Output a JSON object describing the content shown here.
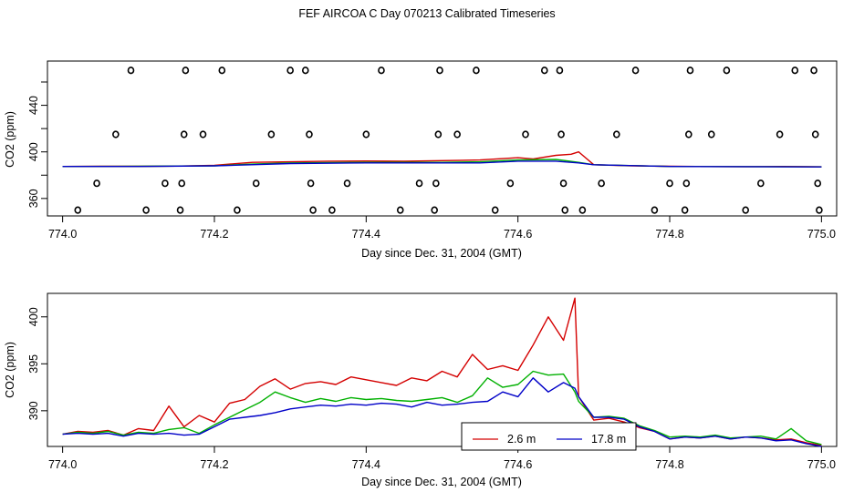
{
  "title": "FEF AIRCOA C  Day 070213  Calibrated Timeseries",
  "chart_data": [
    {
      "type": "scatter",
      "xlabel": "Day since Dec. 31, 2004 (GMT)",
      "ylabel": "CO2 (ppm)",
      "xlim": [
        773.98,
        775.02
      ],
      "ylim": [
        345,
        478
      ],
      "x_ticks": [
        "774.0",
        "774.2",
        "774.4",
        "774.6",
        "774.8",
        "775.0"
      ],
      "y_ticks": [
        "360",
        "400",
        "440"
      ],
      "y_minor_ticks": [
        380,
        420,
        460
      ],
      "series": [
        {
          "color": "#d40000",
          "x": [
            774.0,
            774.05,
            774.1,
            774.15,
            774.2,
            774.25,
            774.3,
            774.35,
            774.4,
            774.45,
            774.5,
            774.55,
            774.6,
            774.62,
            774.65,
            774.67,
            774.68,
            774.7,
            774.75,
            774.8,
            774.85,
            774.9,
            774.95,
            775.0
          ],
          "y": [
            387.5,
            387.6,
            387.6,
            387.8,
            388.5,
            391,
            391.5,
            392,
            392.2,
            392,
            392.5,
            393,
            395,
            394,
            397,
            398,
            400,
            389,
            388,
            387.6,
            387.4,
            387.3,
            387.5,
            387.2
          ]
        },
        {
          "color": "#00b000",
          "x": [
            774.0,
            774.1,
            774.2,
            774.25,
            774.3,
            774.4,
            774.5,
            774.55,
            774.6,
            774.65,
            774.68,
            774.7,
            774.8,
            774.9,
            775.0
          ],
          "y": [
            387.5,
            387.6,
            388,
            389.5,
            390.5,
            391,
            391,
            391.5,
            393,
            393.5,
            391,
            389,
            387.5,
            387.3,
            387.2
          ]
        },
        {
          "color": "#0000c8",
          "x": [
            774.0,
            774.1,
            774.2,
            774.3,
            774.4,
            774.5,
            774.55,
            774.6,
            774.65,
            774.68,
            774.7,
            774.8,
            774.9,
            775.0
          ],
          "y": [
            387.5,
            387.5,
            388,
            390,
            390.5,
            390.5,
            390.5,
            392,
            392,
            390.5,
            389,
            387.5,
            387.3,
            387.1
          ]
        }
      ],
      "points": {
        "x": [
          774.02,
          774.045,
          774.07,
          774.09,
          774.11,
          774.135,
          774.155,
          774.157,
          774.16,
          774.162,
          774.185,
          774.21,
          774.23,
          774.255,
          774.275,
          774.3,
          774.32,
          774.325,
          774.327,
          774.33,
          774.355,
          774.375,
          774.4,
          774.42,
          774.445,
          774.47,
          774.49,
          774.492,
          774.495,
          774.497,
          774.52,
          774.545,
          774.57,
          774.59,
          774.61,
          774.635,
          774.655,
          774.657,
          774.66,
          774.662,
          774.685,
          774.71,
          774.73,
          774.755,
          774.78,
          774.8,
          774.82,
          774.822,
          774.825,
          774.827,
          774.855,
          774.875,
          774.9,
          774.92,
          774.945,
          774.965,
          774.99,
          774.992,
          774.995,
          774.997
        ],
        "y": [
          350,
          373,
          415,
          470,
          350,
          373,
          350,
          373,
          415,
          470,
          415,
          470,
          350,
          373,
          415,
          470,
          470,
          415,
          373,
          350,
          350,
          373,
          415,
          470,
          350,
          373,
          350,
          373,
          415,
          470,
          415,
          470,
          350,
          373,
          415,
          470,
          470,
          415,
          373,
          350,
          350,
          373,
          415,
          470,
          350,
          373,
          350,
          373,
          415,
          470,
          415,
          470,
          350,
          373,
          415,
          470,
          470,
          415,
          373,
          350
        ]
      }
    },
    {
      "type": "line",
      "xlabel": "Day since Dec. 31, 2004 (GMT)",
      "ylabel": "CO2 (ppm)",
      "xlim": [
        773.98,
        775.02
      ],
      "ylim": [
        386.2,
        402.5
      ],
      "x_ticks": [
        "774.0",
        "774.2",
        "774.4",
        "774.6",
        "774.8",
        "775.0"
      ],
      "y_ticks": [
        "390",
        "395",
        "400"
      ],
      "legend": {
        "position": "bottom-right",
        "labels": [
          "2.6 m",
          "17.8 m"
        ]
      },
      "series": [
        {
          "name": "2.6 m",
          "color": "#d40000",
          "x": [
            774.0,
            774.02,
            774.04,
            774.06,
            774.08,
            774.1,
            774.12,
            774.14,
            774.16,
            774.18,
            774.2,
            774.22,
            774.24,
            774.26,
            774.28,
            774.3,
            774.32,
            774.34,
            774.36,
            774.38,
            774.4,
            774.42,
            774.44,
            774.46,
            774.48,
            774.5,
            774.52,
            774.54,
            774.56,
            774.58,
            774.6,
            774.62,
            774.64,
            774.66,
            774.675,
            774.68,
            774.7,
            774.72,
            774.74,
            774.76,
            774.78,
            774.8,
            774.82,
            774.84,
            774.86,
            774.88,
            774.9,
            774.92,
            774.94,
            774.96,
            774.98,
            775.0
          ],
          "y": [
            387.5,
            387.8,
            387.7,
            387.9,
            387.4,
            388.1,
            387.9,
            390.5,
            388.3,
            389.5,
            388.8,
            390.8,
            391.2,
            392.6,
            393.4,
            392.3,
            392.9,
            393.1,
            392.8,
            393.6,
            393.3,
            393.0,
            392.7,
            393.5,
            393.2,
            394.2,
            393.6,
            396.0,
            394.4,
            394.8,
            394.3,
            397.0,
            400.0,
            397.5,
            402.0,
            391.5,
            389.0,
            389.2,
            388.8,
            388.2,
            387.8,
            387.0,
            387.2,
            387.1,
            387.3,
            387.0,
            387.2,
            387.1,
            386.9,
            387.0,
            386.6,
            386.3
          ]
        },
        {
          "name": "",
          "color": "#00b000",
          "x": [
            774.0,
            774.02,
            774.04,
            774.06,
            774.08,
            774.1,
            774.12,
            774.14,
            774.16,
            774.18,
            774.2,
            774.22,
            774.24,
            774.26,
            774.28,
            774.3,
            774.32,
            774.34,
            774.36,
            774.38,
            774.4,
            774.42,
            774.44,
            774.46,
            774.48,
            774.5,
            774.52,
            774.54,
            774.56,
            774.58,
            774.6,
            774.62,
            774.64,
            774.66,
            774.675,
            774.68,
            774.7,
            774.72,
            774.74,
            774.76,
            774.78,
            774.8,
            774.82,
            774.84,
            774.86,
            774.88,
            774.9,
            774.92,
            774.94,
            774.96,
            774.98,
            775.0
          ],
          "y": [
            387.5,
            387.7,
            387.6,
            387.8,
            387.4,
            387.7,
            387.6,
            388.0,
            388.2,
            387.6,
            388.5,
            389.3,
            390.1,
            390.9,
            392.0,
            391.4,
            390.9,
            391.3,
            391.0,
            391.4,
            391.2,
            391.3,
            391.1,
            391.0,
            391.2,
            391.4,
            390.9,
            391.6,
            393.5,
            392.5,
            392.8,
            394.2,
            393.8,
            393.9,
            392.0,
            391.0,
            389.3,
            389.4,
            389.2,
            388.4,
            387.9,
            387.2,
            387.3,
            387.2,
            387.4,
            387.1,
            387.2,
            387.3,
            387.0,
            388.1,
            386.8,
            386.4
          ]
        },
        {
          "name": "17.8 m",
          "color": "#0000c8",
          "x": [
            774.0,
            774.02,
            774.04,
            774.06,
            774.08,
            774.1,
            774.12,
            774.14,
            774.16,
            774.18,
            774.2,
            774.22,
            774.24,
            774.26,
            774.28,
            774.3,
            774.32,
            774.34,
            774.36,
            774.38,
            774.4,
            774.42,
            774.44,
            774.46,
            774.48,
            774.5,
            774.52,
            774.54,
            774.56,
            774.58,
            774.6,
            774.62,
            774.64,
            774.66,
            774.675,
            774.68,
            774.7,
            774.72,
            774.74,
            774.76,
            774.78,
            774.8,
            774.82,
            774.84,
            774.86,
            774.88,
            774.9,
            774.92,
            774.94,
            774.96,
            774.98,
            775.0
          ],
          "y": [
            387.5,
            387.6,
            387.5,
            387.6,
            387.3,
            387.6,
            387.5,
            387.6,
            387.4,
            387.5,
            388.3,
            389.1,
            389.3,
            389.5,
            389.8,
            390.2,
            390.4,
            390.6,
            390.5,
            390.7,
            390.6,
            390.8,
            390.7,
            390.4,
            390.9,
            390.6,
            390.7,
            390.9,
            391.0,
            392.0,
            391.5,
            393.5,
            392.0,
            393.0,
            392.4,
            391.5,
            389.3,
            389.3,
            389.1,
            388.3,
            387.8,
            387.0,
            387.2,
            387.1,
            387.3,
            387.0,
            387.2,
            387.1,
            386.8,
            386.9,
            386.5,
            386.2
          ]
        }
      ]
    }
  ]
}
